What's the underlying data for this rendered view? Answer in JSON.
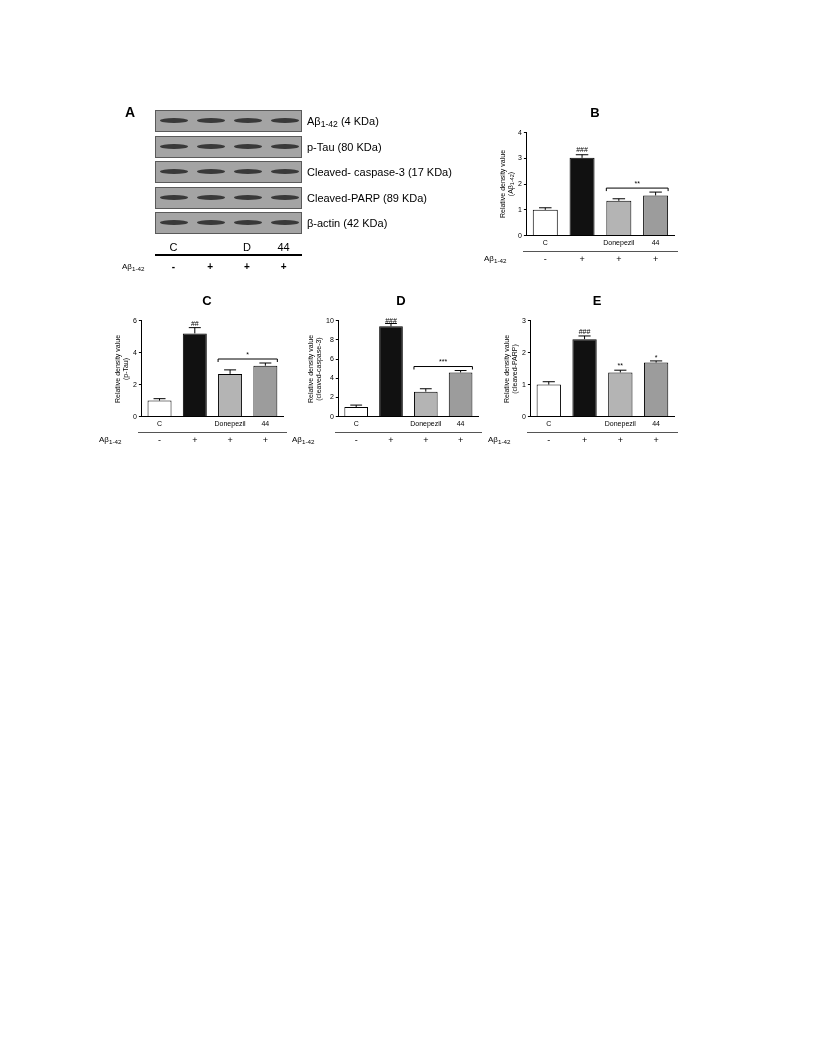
{
  "chart_data": [
    {
      "type": "other",
      "title": "A",
      "categories": [
        "C",
        null,
        "D",
        "44"
      ],
      "y_categories": [
        "Aβ$_{1-42}$ (4 KDa)",
        "p-Tau (80 KDa)",
        "Cleaved- caspase-3 (17 KDa)",
        "Cleaved-PARP (89 KDa)",
        "β-actin (42 KDa)"
      ],
      "annotations": [
        "Aβ$_{1-42}$",
        "-",
        "+",
        "+",
        "+"
      ]
    },
    {
      "type": "bar",
      "title": "B",
      "ylabel": "Relative density value\n(Aβ$_{1-42}$)",
      "categories": [
        "C",
        null,
        "Donepezil",
        "44"
      ],
      "values": [
        1.0,
        3.02,
        1.35,
        1.56
      ],
      "colors": [
        "#ffffff",
        "#111111",
        "#b4b4b4",
        "#9c9c9c"
      ],
      "errors": [
        0.08,
        0.12,
        0.08,
        0.13
      ],
      "ylim": [
        0,
        4
      ],
      "yticks": [
        0,
        1,
        2,
        3,
        4
      ],
      "annotations": [
        "Aβ$_{1-42}$",
        "-",
        "+",
        "+",
        "+",
        {
          "text": "###",
          "y": 3.32
        },
        "**"
      ]
    },
    {
      "type": "bar",
      "title": "C",
      "ylabel": "Relative density value\n(p-Tau)",
      "categories": [
        "C",
        null,
        "Donepezil",
        "44"
      ],
      "values": [
        1.0,
        5.2,
        2.67,
        3.18
      ],
      "colors": [
        "#ffffff",
        "#111111",
        "#b4b4b4",
        "#9c9c9c"
      ],
      "errors": [
        0.12,
        0.36,
        0.25,
        0.17
      ],
      "ylim": [
        0,
        6
      ],
      "yticks": [
        0,
        2,
        4,
        6
      ],
      "annotations": [
        "Aβ$_{1-42}$",
        "-",
        "+",
        "+",
        "+",
        {
          "text": "##",
          "y": 5.81
        },
        "*"
      ]
    },
    {
      "type": "bar",
      "title": "D",
      "ylabel": "Relative density value\n(cleaved-caspase-3)",
      "categories": [
        "C",
        null,
        "Donepezil",
        "44"
      ],
      "values": [
        1.0,
        9.4,
        2.6,
        4.6
      ],
      "colors": [
        "#ffffff",
        "#111111",
        "#b4b4b4",
        "#9c9c9c"
      ],
      "errors": [
        0.2,
        0.3,
        0.3,
        0.2
      ],
      "ylim": [
        0,
        10
      ],
      "yticks": [
        0,
        2,
        4,
        6,
        8,
        10
      ],
      "annotations": [
        "Aβ$_{1-42}$",
        "-",
        "+",
        "+",
        "+",
        {
          "text": "###",
          "y": 9.9
        },
        "***"
      ]
    },
    {
      "type": "bar",
      "title": "E",
      "ylabel": "Relative density value\n(cleaved-PARP)",
      "categories": [
        "C",
        null,
        "Donepezil",
        "44"
      ],
      "values": [
        1.0,
        2.42,
        1.38,
        1.69
      ],
      "colors": [
        "#ffffff",
        "#111111",
        "#b4b4b4",
        "#9c9c9c"
      ],
      "errors": [
        0.09,
        0.1,
        0.07,
        0.05
      ],
      "ylim": [
        0,
        3
      ],
      "yticks": [
        0,
        1,
        2,
        3
      ],
      "annotations": [
        "Aβ$_{1-42}$",
        "-",
        "+",
        "+",
        "+",
        {
          "text": "###",
          "y": 2.64
        },
        {
          "text": "**",
          "x": "Donepezil",
          "y": 1.59
        },
        {
          "text": "*",
          "x": "44",
          "y": 1.84
        }
      ]
    }
  ]
}
